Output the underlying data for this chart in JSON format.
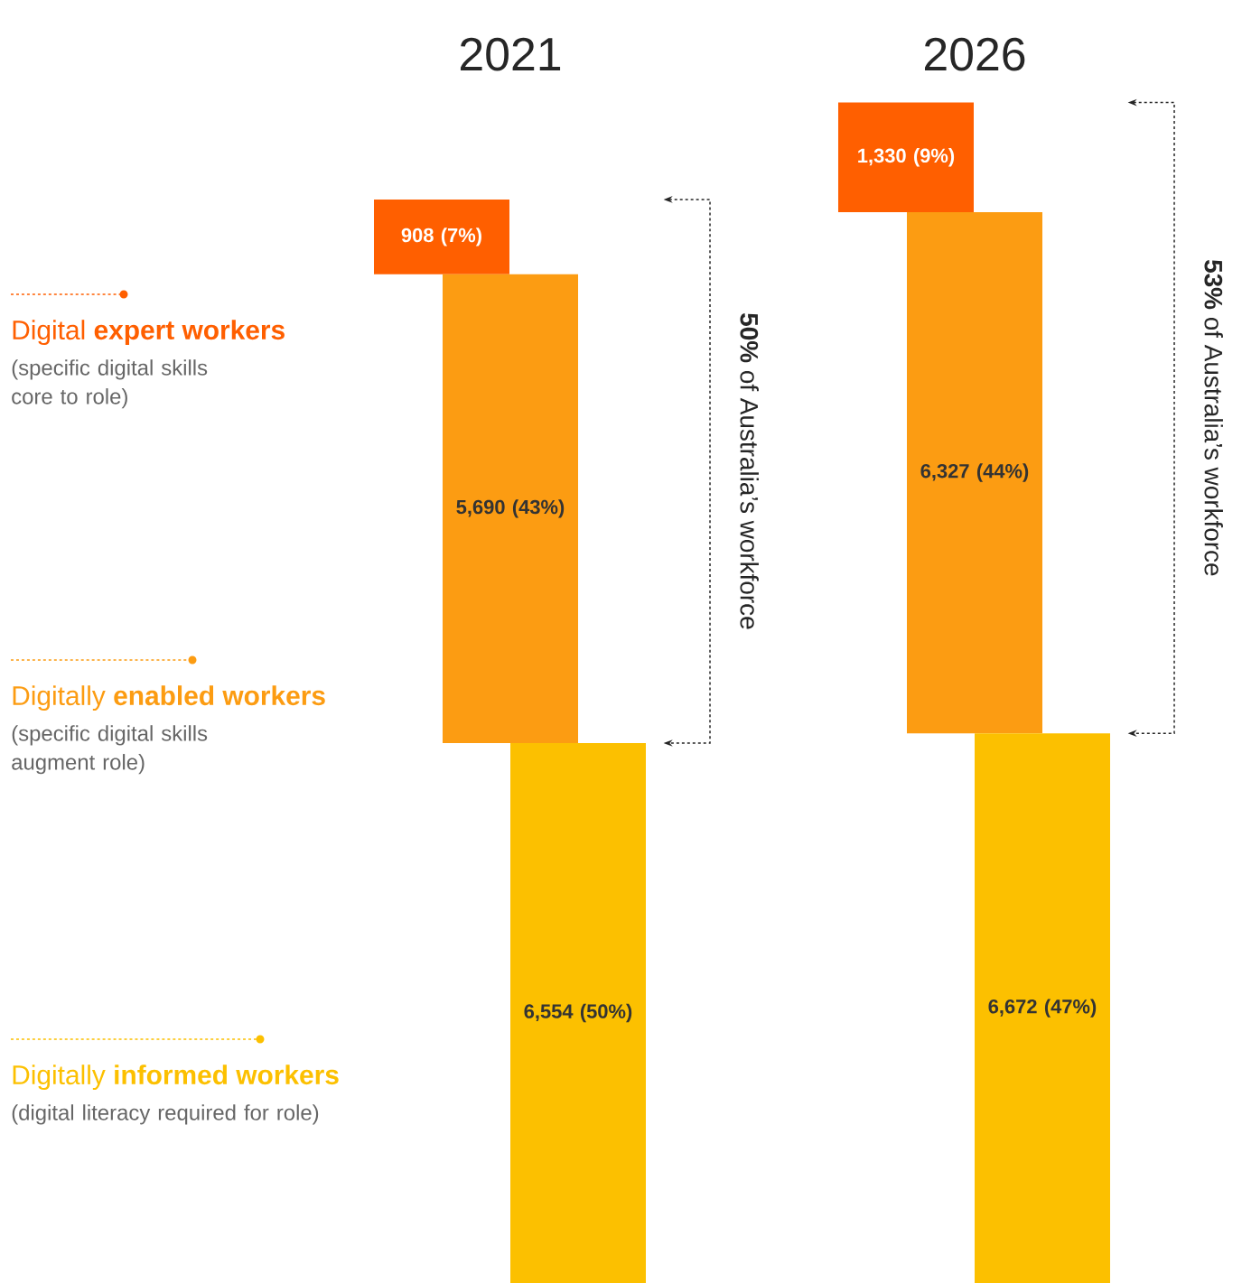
{
  "chart_data": {
    "type": "bar",
    "stacked": true,
    "categories": [
      "2021",
      "2026"
    ],
    "legend": "left",
    "series": [
      {
        "name": "Digitally **informed workers**",
        "color": "#fcc000",
        "values": [
          6554,
          6672
        ],
        "value_labels": [
          "6,554 (50%)",
          "6,672 (47%)"
        ]
      },
      {
        "name": "Digitally **enabled workers**",
        "color": "#fc9c12",
        "values": [
          5690,
          6327
        ],
        "value_labels": [
          "5,690 (43%)",
          "6,327 (44%)"
        ]
      },
      {
        "name": "Digital **expert workers**",
        "color": "#ff5f00",
        "values": [
          908,
          1330
        ],
        "value_labels": [
          "908 (7%)",
          "1,330 (9%)"
        ]
      }
    ],
    "annotations": [
      "(digital literacy required for role)",
      "(specific digital skills augment role)",
      "(specific digital skills core to role)",
      "**50%** of Australia’s workforce",
      "**53%** of Australia’s workforce"
    ]
  }
}
